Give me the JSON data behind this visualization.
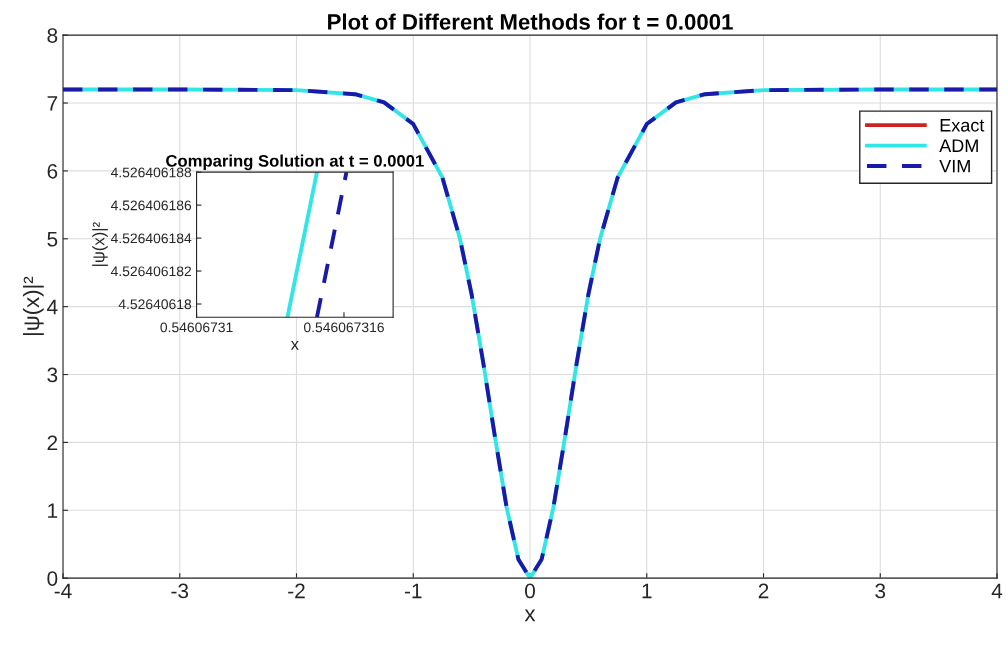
{
  "chart_data": [
    {
      "type": "line",
      "title": "Plot of Different Methods for t = 0.0001",
      "xlabel": "x",
      "ylabel": "|ψ(x)|²",
      "x": [
        -4,
        -3,
        -2,
        -1.5,
        -1.25,
        -1,
        -0.75,
        -0.6,
        -0.5,
        -0.4,
        -0.3,
        -0.2,
        -0.1,
        0,
        0.1,
        0.2,
        0.3,
        0.4,
        0.5,
        0.6,
        0.75,
        1,
        1.25,
        1.5,
        2,
        3,
        4
      ],
      "series": [
        {
          "name": "Exact",
          "color": "#cc2222",
          "line_style": "solid",
          "values": [
            null,
            null,
            null,
            null,
            null,
            null,
            null,
            null,
            null,
            null,
            null,
            null,
            null,
            null,
            null,
            null,
            null,
            null,
            null,
            null,
            null,
            null,
            null,
            null,
            null,
            null,
            null
          ]
        },
        {
          "name": "ADM",
          "color": "#33e6e6",
          "line_style": "solid",
          "values": [
            7.2,
            7.2,
            7.19,
            7.13,
            7.01,
            6.69,
            5.9,
            5.0,
            4.18,
            3.17,
            2.08,
            1.04,
            0.28,
            0,
            0.28,
            1.04,
            2.08,
            3.17,
            4.18,
            5.0,
            5.9,
            6.69,
            7.01,
            7.13,
            7.19,
            7.2,
            7.2
          ]
        },
        {
          "name": "VIM",
          "color": "#1a1aaa",
          "line_style": "dashed",
          "values": [
            7.2,
            7.2,
            7.19,
            7.13,
            7.01,
            6.69,
            5.9,
            5.0,
            4.18,
            3.17,
            2.08,
            1.04,
            0.28,
            0,
            0.28,
            1.04,
            2.08,
            3.17,
            4.18,
            5.0,
            5.9,
            6.69,
            7.01,
            7.13,
            7.19,
            7.2,
            7.2
          ]
        }
      ],
      "xlim": [
        -4,
        4
      ],
      "xticks": [
        -4,
        -3,
        -2,
        -1,
        0,
        1,
        2,
        3,
        4
      ],
      "ylim": [
        0,
        8
      ],
      "yticks": [
        0,
        1,
        2,
        3,
        4,
        5,
        6,
        7,
        8
      ],
      "grid": true,
      "legend": "top right"
    },
    {
      "type": "line",
      "title": "Comparing Solution at t = 0.0001",
      "xlabel": "x",
      "ylabel": "|ψ(x)|²",
      "series": [
        {
          "color": "#33e6e6",
          "line_style": "solid",
          "x": [
            0.5460673137,
            0.5460673149
          ],
          "values": [
            4.5264061792,
            4.526406188
          ]
        },
        {
          "color": "#1a1aaa",
          "line_style": "dashed",
          "x": [
            0.5460673149,
            0.5460673161
          ],
          "values": [
            4.5264061792,
            4.526406188
          ]
        }
      ],
      "xlim": [
        0.54606731,
        0.546067318
      ],
      "xticks": [
        0.54606731,
        0.546067316
      ],
      "ylim": [
        4.5264061792,
        4.526406188
      ],
      "yticks": [
        4.52640618,
        4.526406182,
        4.526406184,
        4.526406186,
        4.526406188
      ]
    }
  ]
}
